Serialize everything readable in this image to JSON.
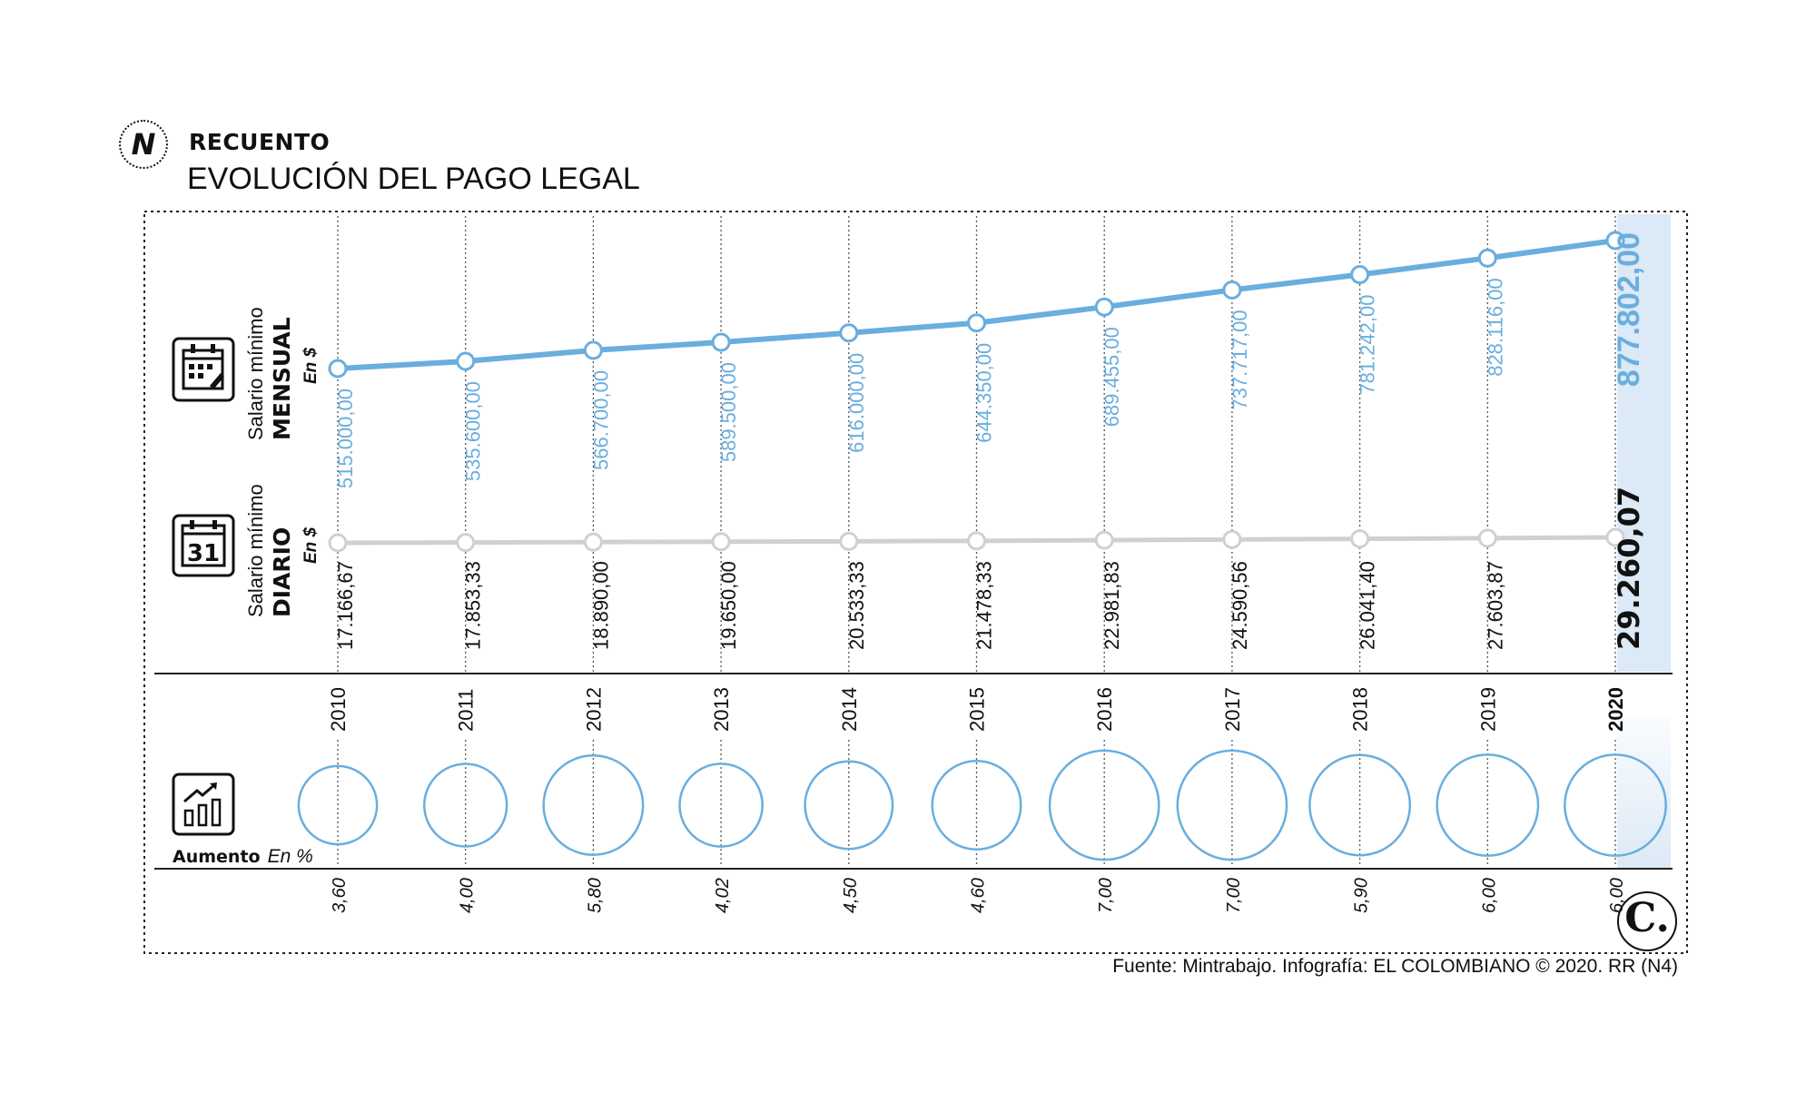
{
  "header": {
    "logo_letter": "N",
    "kicker": "RECUENTO",
    "title": "EVOLUCIÓN DEL PAGO LEGAL"
  },
  "labels": {
    "monthly_line1": "Salario mínimo",
    "monthly_line2": "MENSUAL",
    "monthly_unit": "En $",
    "daily_line1": "Salario mínimo",
    "daily_line2": "DIARIO",
    "daily_unit": "En $",
    "increase_bold": "Aumento",
    "increase_unit": "En %",
    "calendar_number": "31"
  },
  "icons": {
    "monthly": "calendar-grid-icon",
    "daily": "calendar-31-icon",
    "increase": "bar-growth-icon"
  },
  "colors": {
    "monthly": "#6aaede",
    "daily": "#d0d0d0",
    "highlight": "#dce9f6",
    "text": "#111111"
  },
  "chart_data": {
    "type": "line",
    "x": [
      "2010",
      "2011",
      "2012",
      "2013",
      "2014",
      "2015",
      "2016",
      "2017",
      "2018",
      "2019",
      "2020"
    ],
    "series": [
      {
        "name": "Salario mínimo MENSUAL",
        "values": [
          515000,
          535600,
          566700,
          589500,
          616000,
          644350,
          689455,
          737717,
          781242,
          828116,
          877802
        ],
        "labels": [
          "515.000,00",
          "535.600,00",
          "566.700,00",
          "589.500,00",
          "616.000,00",
          "644.350,00",
          "689.455,00",
          "737.717,00",
          "781.242,00",
          "828.116,00",
          "877.802,00"
        ]
      },
      {
        "name": "Salario mínimo DIARIO",
        "values": [
          17166.67,
          17853.33,
          18890,
          19650,
          20533.33,
          21478.33,
          22981.83,
          24590.56,
          26041.4,
          27603.87,
          29260.07
        ],
        "labels": [
          "17.166,67",
          "17.853,33",
          "18.890,00",
          "19.650,00",
          "20.533,33",
          "21.478,33",
          "22.981,83",
          "24.590,56",
          "26.041,40",
          "27.603,87",
          "29.260,07"
        ]
      },
      {
        "name": "Aumento",
        "values": [
          3.6,
          4.0,
          5.8,
          4.02,
          4.5,
          4.6,
          7.0,
          7.0,
          5.9,
          6.0,
          6.0
        ],
        "labels": [
          "3,60",
          "4,00",
          "5,80",
          "4,02",
          "4,50",
          "4,60",
          "7,00",
          "7,00",
          "5,90",
          "6,00",
          "6,00"
        ]
      }
    ],
    "highlight_year": "2020"
  },
  "footer": {
    "source": "Fuente: Mintrabajo. Infografía: EL COLOMBIANO © 2020. RR (N4)",
    "brand_letter": "C."
  }
}
